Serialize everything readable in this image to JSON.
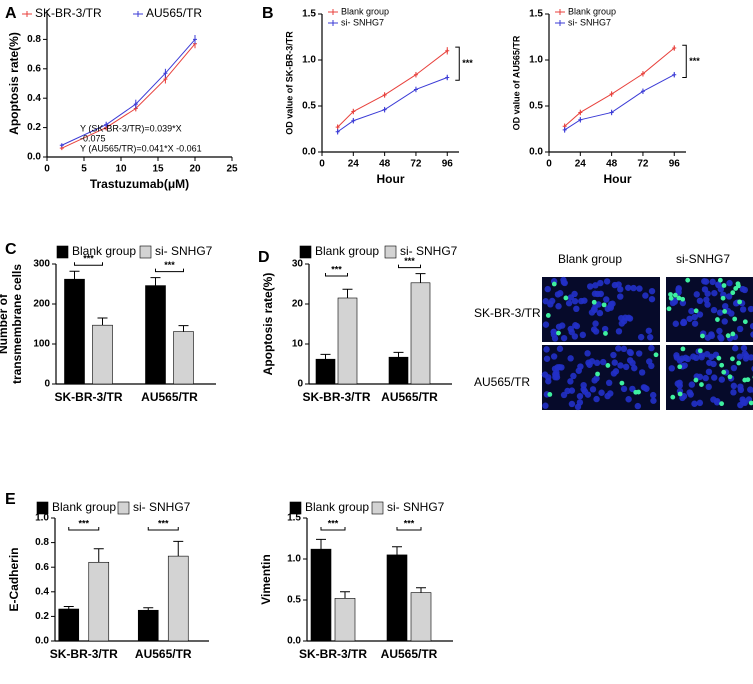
{
  "chart_data": [
    {
      "type": "line",
      "panel": "A",
      "xlabel": "Trastuzumab(μM)",
      "ylabel": "Apoptosis rate(%)",
      "x": [
        2,
        8,
        12,
        16,
        20
      ],
      "series": [
        {
          "name": "SK-BR-3/TR",
          "color": "#e8413c",
          "values": [
            0.06,
            0.2,
            0.33,
            0.53,
            0.77
          ],
          "errors": [
            0.01,
            0.02,
            0.02,
            0.03,
            0.03
          ]
        },
        {
          "name": "AU565/TR",
          "color": "#3b3bd6",
          "values": [
            0.08,
            0.22,
            0.36,
            0.57,
            0.8
          ],
          "errors": [
            0.01,
            0.02,
            0.03,
            0.03,
            0.03
          ]
        }
      ],
      "xlim": [
        0,
        25
      ],
      "xticks": [
        0,
        5,
        10,
        15,
        20,
        25
      ],
      "ylim": [
        0,
        1.0
      ],
      "yticks": [
        {
          "value": 0,
          "label": "0.0"
        },
        0.2,
        0.4,
        0.6,
        0.8
      ],
      "annotations": [
        "Y (SK-BR-3/TR)=0.039*X",
        "-0.075",
        "Y (AU565/TR)=0.041*X -0.061"
      ]
    },
    {
      "type": "line",
      "panel": "B",
      "xlabel": "Hour",
      "ylabel": "OD value of SK-BR-3/TR",
      "x": [
        12,
        24,
        48,
        72,
        96
      ],
      "series": [
        {
          "name": "Blank group",
          "color": "#e8413c",
          "values": [
            0.27,
            0.44,
            0.62,
            0.84,
            1.1
          ],
          "errors": [
            0.03,
            0.03,
            0.03,
            0.03,
            0.04
          ]
        },
        {
          "name": "si- SNHG7",
          "color": "#3b3bd6",
          "values": [
            0.22,
            0.34,
            0.46,
            0.68,
            0.81
          ],
          "errors": [
            0.03,
            0.03,
            0.03,
            0.03,
            0.03
          ]
        }
      ],
      "xlim": [
        0,
        105
      ],
      "xticks": [
        0,
        24,
        48,
        72,
        96
      ],
      "ylim": [
        0,
        1.5
      ],
      "yticks": [
        {
          "value": 0,
          "label": "0.0"
        },
        0.5,
        {
          "value": 1,
          "label": "1.0"
        },
        1.5
      ],
      "significance": [
        "***"
      ]
    },
    {
      "type": "line",
      "xlabel": "Hour",
      "ylabel": "OD value of AU565/TR",
      "x": [
        12,
        24,
        48,
        72,
        96
      ],
      "series": [
        {
          "name": "Blank group",
          "color": "#e8413c",
          "values": [
            0.28,
            0.43,
            0.63,
            0.85,
            1.13
          ],
          "errors": [
            0.03,
            0.03,
            0.03,
            0.03,
            0.03
          ]
        },
        {
          "name": "si- SNHG7",
          "color": "#3b3bd6",
          "values": [
            0.24,
            0.35,
            0.43,
            0.66,
            0.84
          ],
          "errors": [
            0.03,
            0.03,
            0.03,
            0.03,
            0.03
          ]
        }
      ],
      "xlim": [
        0,
        105
      ],
      "xticks": [
        0,
        24,
        48,
        72,
        96
      ],
      "ylim": [
        0,
        1.5
      ],
      "yticks": [
        {
          "value": 0,
          "label": "0.0"
        },
        0.5,
        {
          "value": 1,
          "label": "1.0"
        },
        1.5
      ],
      "significance": [
        "***"
      ]
    },
    {
      "type": "bar",
      "panel": "C",
      "ylabel": [
        "Number of",
        "transmembrane cells"
      ],
      "categories": [
        "SK-BR-3/TR",
        "AU565/TR"
      ],
      "series": [
        {
          "name": "Blank group",
          "color": "#000000",
          "values": [
            262,
            246
          ],
          "errors": [
            20,
            20
          ]
        },
        {
          "name": "si- SNHG7",
          "color": "#d3d3d3",
          "values": [
            147,
            131
          ],
          "errors": [
            18,
            15
          ]
        }
      ],
      "ylim": [
        0,
        300
      ],
      "yticks": [
        0,
        100,
        200,
        300
      ],
      "significance": [
        "***",
        "***"
      ]
    },
    {
      "type": "bar",
      "panel": "D",
      "ylabel": "Apoptosis rate(%)",
      "categories": [
        "SK-BR-3/TR",
        "AU565/TR"
      ],
      "series": [
        {
          "name": "Blank group",
          "color": "#000000",
          "values": [
            6.2,
            6.7
          ],
          "errors": [
            1.2,
            1.2
          ]
        },
        {
          "name": "si- SNHG7",
          "color": "#d3d3d3",
          "values": [
            21.5,
            25.3
          ],
          "errors": [
            2.2,
            2.3
          ]
        }
      ],
      "ylim": [
        0,
        30
      ],
      "yticks": [
        0,
        10,
        20,
        30
      ],
      "significance": [
        "***",
        "***"
      ]
    },
    {
      "type": "bar",
      "panel": "E",
      "ylabel": "E-Cadherin",
      "categories": [
        "SK-BR-3/TR",
        "AU565/TR"
      ],
      "series": [
        {
          "name": "Blank group",
          "color": "#000000",
          "values": [
            0.26,
            0.25
          ],
          "errors": [
            0.02,
            0.02
          ]
        },
        {
          "name": "si- SNHG7",
          "color": "#d3d3d3",
          "values": [
            0.64,
            0.69
          ],
          "errors": [
            0.11,
            0.12
          ]
        }
      ],
      "ylim": [
        0,
        1.0
      ],
      "yticks": [
        {
          "value": 0,
          "label": "0.0"
        },
        0.2,
        0.4,
        0.6,
        0.8,
        {
          "value": 1,
          "label": "1.0"
        }
      ],
      "significance": [
        "***",
        "***"
      ]
    },
    {
      "type": "bar",
      "ylabel": "Vimentin",
      "categories": [
        "SK-BR-3/TR",
        "AU565/TR"
      ],
      "series": [
        {
          "name": "Blank group",
          "color": "#000000",
          "values": [
            1.12,
            1.05
          ],
          "errors": [
            0.12,
            0.1
          ]
        },
        {
          "name": "si- SNHG7",
          "color": "#d3d3d3",
          "values": [
            0.52,
            0.59
          ],
          "errors": [
            0.08,
            0.06
          ]
        }
      ],
      "ylim": [
        0,
        1.5
      ],
      "yticks": [
        {
          "value": 0,
          "label": "0.0"
        },
        0.5,
        {
          "value": 1,
          "label": "1.0"
        },
        1.5
      ],
      "significance": [
        "***",
        "***"
      ]
    }
  ],
  "image_panel": {
    "column_labels": [
      "Blank group",
      "si-SNHG7"
    ],
    "row_labels": [
      "SK-BR-3/TR",
      "AU565/TR"
    ]
  }
}
